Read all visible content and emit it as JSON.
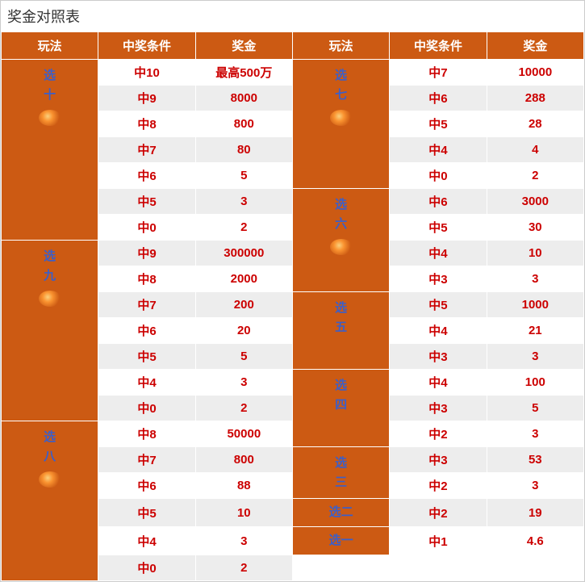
{
  "title": "奖金对照表",
  "headers": [
    "玩法",
    "中奖条件",
    "奖金",
    "玩法",
    "中奖条件",
    "奖金"
  ],
  "colors": {
    "header_bg": "#cc5a13",
    "play_bg": "#cc5a13",
    "play_text": "#3b5fc9",
    "value_text": "#cc0000",
    "row_odd_bg": "#ededed",
    "row_even_bg": "#ffffff"
  },
  "left_groups": [
    {
      "name_lines": [
        "选",
        "十"
      ],
      "has_icon": true,
      "rows": [
        {
          "cond": "中10",
          "prize": "最高500万"
        },
        {
          "cond": "中9",
          "prize": "8000"
        },
        {
          "cond": "中8",
          "prize": "800"
        },
        {
          "cond": "中7",
          "prize": "80"
        },
        {
          "cond": "中6",
          "prize": "5"
        },
        {
          "cond": "中5",
          "prize": "3"
        },
        {
          "cond": "中0",
          "prize": "2"
        }
      ]
    },
    {
      "name_lines": [
        "选",
        "九"
      ],
      "has_icon": true,
      "rows": [
        {
          "cond": "中9",
          "prize": "300000"
        },
        {
          "cond": "中8",
          "prize": "2000"
        },
        {
          "cond": "中7",
          "prize": "200"
        },
        {
          "cond": "中6",
          "prize": "20"
        },
        {
          "cond": "中5",
          "prize": "5"
        },
        {
          "cond": "中4",
          "prize": "3"
        },
        {
          "cond": "中0",
          "prize": "2"
        }
      ]
    },
    {
      "name_lines": [
        "选",
        "八"
      ],
      "has_icon": true,
      "rows": [
        {
          "cond": "中8",
          "prize": "50000"
        },
        {
          "cond": "中7",
          "prize": "800"
        },
        {
          "cond": "中6",
          "prize": "88"
        },
        {
          "cond": "中5",
          "prize": "10"
        },
        {
          "cond": "中4",
          "prize": "3"
        },
        {
          "cond": "中0",
          "prize": "2"
        }
      ]
    }
  ],
  "right_groups": [
    {
      "name_lines": [
        "选",
        "七"
      ],
      "has_icon": true,
      "rows": [
        {
          "cond": "中7",
          "prize": "10000"
        },
        {
          "cond": "中6",
          "prize": "288"
        },
        {
          "cond": "中5",
          "prize": "28"
        },
        {
          "cond": "中4",
          "prize": "4"
        },
        {
          "cond": "中0",
          "prize": "2"
        }
      ]
    },
    {
      "name_lines": [
        "选",
        "六"
      ],
      "has_icon": true,
      "rows": [
        {
          "cond": "中6",
          "prize": "3000"
        },
        {
          "cond": "中5",
          "prize": "30"
        },
        {
          "cond": "中4",
          "prize": "10"
        },
        {
          "cond": "中3",
          "prize": "3"
        }
      ]
    },
    {
      "name_lines": [
        "选",
        "五"
      ],
      "has_icon": false,
      "rows": [
        {
          "cond": "中5",
          "prize": "1000"
        },
        {
          "cond": "中4",
          "prize": "21"
        },
        {
          "cond": "中3",
          "prize": "3"
        }
      ]
    },
    {
      "name_lines": [
        "选",
        "四"
      ],
      "has_icon": false,
      "rows": [
        {
          "cond": "中4",
          "prize": "100"
        },
        {
          "cond": "中3",
          "prize": "5"
        },
        {
          "cond": "中2",
          "prize": "3"
        }
      ]
    },
    {
      "name_lines": [
        "选",
        "三"
      ],
      "has_icon": false,
      "rows": [
        {
          "cond": "中3",
          "prize": "53"
        },
        {
          "cond": "中2",
          "prize": "3"
        }
      ]
    },
    {
      "name_lines": [
        "选二"
      ],
      "has_icon": false,
      "rows": [
        {
          "cond": "中2",
          "prize": "19"
        }
      ]
    },
    {
      "name_lines": [
        "选一"
      ],
      "has_icon": false,
      "rows": [
        {
          "cond": "中1",
          "prize": "4.6"
        }
      ]
    }
  ]
}
